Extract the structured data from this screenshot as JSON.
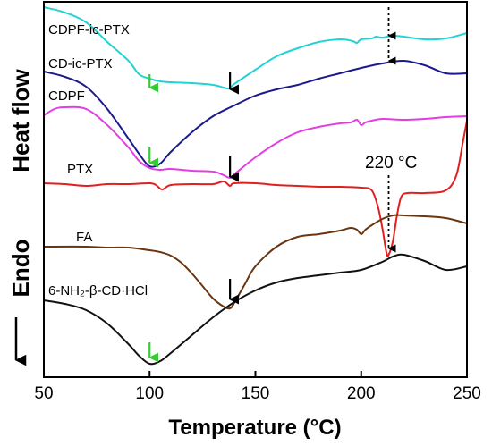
{
  "chart_data": {
    "type": "line",
    "xlabel": "Temperature (°C)",
    "ylabel_main": "Heat flow",
    "ylabel_endo": "Endo",
    "xlim": [
      50,
      250
    ],
    "xticks": [
      50,
      100,
      150,
      200,
      250
    ],
    "grid": false,
    "legend": "none",
    "series": [
      {
        "name": "CDPF-ic-PTX",
        "color": "#22d3d3",
        "points": [
          [
            50,
            8
          ],
          [
            60,
            14
          ],
          [
            70,
            25
          ],
          [
            80,
            47
          ],
          [
            90,
            68
          ],
          [
            95,
            83
          ],
          [
            100,
            88
          ],
          [
            105,
            91
          ],
          [
            110,
            92
          ],
          [
            120,
            93
          ],
          [
            130,
            95
          ],
          [
            135,
            98
          ],
          [
            138,
            99
          ],
          [
            140,
            94
          ],
          [
            150,
            78
          ],
          [
            160,
            63
          ],
          [
            170,
            54
          ],
          [
            180,
            47
          ],
          [
            190,
            44
          ],
          [
            196,
            46
          ],
          [
            198,
            48
          ],
          [
            200,
            44
          ],
          [
            205,
            43
          ],
          [
            207,
            41
          ],
          [
            210,
            42
          ],
          [
            215,
            40
          ],
          [
            220,
            41
          ],
          [
            230,
            44
          ],
          [
            240,
            43
          ],
          [
            250,
            37
          ]
        ]
      },
      {
        "name": "CD-ic-PTX",
        "color": "#1a1a8c",
        "points": [
          [
            50,
            80
          ],
          [
            60,
            86
          ],
          [
            70,
            97
          ],
          [
            80,
            122
          ],
          [
            90,
            155
          ],
          [
            95,
            172
          ],
          [
            100,
            186
          ],
          [
            105,
            183
          ],
          [
            110,
            170
          ],
          [
            120,
            148
          ],
          [
            130,
            130
          ],
          [
            140,
            118
          ],
          [
            150,
            107
          ],
          [
            160,
            100
          ],
          [
            170,
            95
          ],
          [
            180,
            88
          ],
          [
            190,
            82
          ],
          [
            200,
            76
          ],
          [
            210,
            71
          ],
          [
            220,
            68
          ],
          [
            230,
            73
          ],
          [
            240,
            82
          ],
          [
            250,
            82
          ]
        ]
      },
      {
        "name": "CDPF",
        "color": "#e33de3",
        "points": [
          [
            50,
            129
          ],
          [
            55,
            122
          ],
          [
            60,
            120
          ],
          [
            70,
            122
          ],
          [
            80,
            140
          ],
          [
            90,
            165
          ],
          [
            95,
            180
          ],
          [
            100,
            188
          ],
          [
            105,
            190
          ],
          [
            110,
            189
          ],
          [
            120,
            191
          ],
          [
            130,
            192
          ],
          [
            135,
            196
          ],
          [
            138,
            199
          ],
          [
            140,
            195
          ],
          [
            150,
            176
          ],
          [
            160,
            160
          ],
          [
            170,
            148
          ],
          [
            180,
            142
          ],
          [
            190,
            138
          ],
          [
            195,
            137
          ],
          [
            198,
            134
          ],
          [
            200,
            140
          ],
          [
            202,
            137
          ],
          [
            205,
            135
          ],
          [
            210,
            133
          ],
          [
            220,
            134
          ],
          [
            230,
            133
          ],
          [
            240,
            131
          ],
          [
            250,
            130
          ]
        ]
      },
      {
        "name": "PTX",
        "color": "#e02020",
        "points": [
          [
            50,
            205
          ],
          [
            60,
            206
          ],
          [
            70,
            208
          ],
          [
            80,
            206
          ],
          [
            90,
            206
          ],
          [
            100,
            205
          ],
          [
            103,
            207
          ],
          [
            106,
            212
          ],
          [
            110,
            207
          ],
          [
            120,
            206
          ],
          [
            130,
            206
          ],
          [
            135,
            203
          ],
          [
            138,
            208
          ],
          [
            140,
            205
          ],
          [
            150,
            205
          ],
          [
            160,
            207
          ],
          [
            170,
            208
          ],
          [
            180,
            209
          ],
          [
            190,
            209
          ],
          [
            200,
            210
          ],
          [
            205,
            213
          ],
          [
            208,
            232
          ],
          [
            210,
            255
          ],
          [
            212,
            283
          ],
          [
            213,
            285
          ],
          [
            215,
            270
          ],
          [
            217,
            240
          ],
          [
            219,
            220
          ],
          [
            222,
            216
          ],
          [
            230,
            216
          ],
          [
            240,
            213
          ],
          [
            245,
            196
          ],
          [
            248,
            160
          ],
          [
            250,
            135
          ]
        ]
      },
      {
        "name": "FA",
        "color": "#6b3510",
        "points": [
          [
            50,
            276
          ],
          [
            70,
            276
          ],
          [
            80,
            277
          ],
          [
            90,
            277
          ],
          [
            100,
            280
          ],
          [
            105,
            282
          ],
          [
            110,
            286
          ],
          [
            115,
            294
          ],
          [
            120,
            306
          ],
          [
            125,
            320
          ],
          [
            130,
            334
          ],
          [
            135,
            343
          ],
          [
            138,
            345
          ],
          [
            140,
            339
          ],
          [
            145,
            318
          ],
          [
            150,
            298
          ],
          [
            160,
            276
          ],
          [
            170,
            265
          ],
          [
            180,
            262
          ],
          [
            190,
            258
          ],
          [
            195,
            255
          ],
          [
            198,
            257
          ],
          [
            200,
            262
          ],
          [
            202,
            257
          ],
          [
            205,
            252
          ],
          [
            210,
            245
          ],
          [
            215,
            241
          ],
          [
            220,
            241
          ],
          [
            230,
            242
          ],
          [
            240,
            244
          ],
          [
            250,
            250
          ]
        ]
      },
      {
        "name": "6-NH₂-β-CD·HCl",
        "color": "#111111",
        "points": [
          [
            50,
            336
          ],
          [
            60,
            340
          ],
          [
            70,
            347
          ],
          [
            80,
            362
          ],
          [
            90,
            385
          ],
          [
            95,
            398
          ],
          [
            100,
            407
          ],
          [
            105,
            404
          ],
          [
            110,
            395
          ],
          [
            120,
            375
          ],
          [
            130,
            355
          ],
          [
            140,
            338
          ],
          [
            150,
            325
          ],
          [
            160,
            316
          ],
          [
            170,
            311
          ],
          [
            180,
            308
          ],
          [
            190,
            305
          ],
          [
            200,
            302
          ],
          [
            210,
            293
          ],
          [
            215,
            287
          ],
          [
            220,
            285
          ],
          [
            230,
            292
          ],
          [
            240,
            302
          ],
          [
            250,
            298
          ]
        ]
      }
    ],
    "series_labels": [
      "CDPF-ic-PTX",
      "CD-ic-PTX",
      "CDPF",
      "PTX",
      "FA",
      "6-NH₂-β-CD·HCl"
    ],
    "annotations": [
      {
        "kind": "arrow",
        "style": "solid",
        "color": "#33cc33",
        "x": 100,
        "y0": 83,
        "y1": 98
      },
      {
        "kind": "arrow",
        "style": "solid",
        "color": "#33cc33",
        "x": 100,
        "y0": 165,
        "y1": 182
      },
      {
        "kind": "arrow",
        "style": "solid",
        "color": "#33cc33",
        "x": 100,
        "y0": 383,
        "y1": 400
      },
      {
        "kind": "arrow",
        "style": "solid",
        "color": "#000000",
        "x": 138,
        "y0": 80,
        "y1": 100
      },
      {
        "kind": "arrow",
        "style": "solid",
        "color": "#000000",
        "x": 138,
        "y0": 175,
        "y1": 198
      },
      {
        "kind": "arrow",
        "style": "solid",
        "color": "#000000",
        "x": 138,
        "y0": 312,
        "y1": 335
      },
      {
        "kind": "arrow",
        "style": "dashed",
        "color": "#000000",
        "x": 213,
        "y0": 8,
        "y1": 40
      },
      {
        "kind": "arrow",
        "style": "dashed",
        "color": "#000000",
        "x": 213,
        "y0": 44,
        "y1": 68
      },
      {
        "kind": "arrow",
        "style": "dashed",
        "color": "#000000",
        "x": 213,
        "y0": 196,
        "y1": 278
      }
    ],
    "anno_text": "220 °C"
  }
}
